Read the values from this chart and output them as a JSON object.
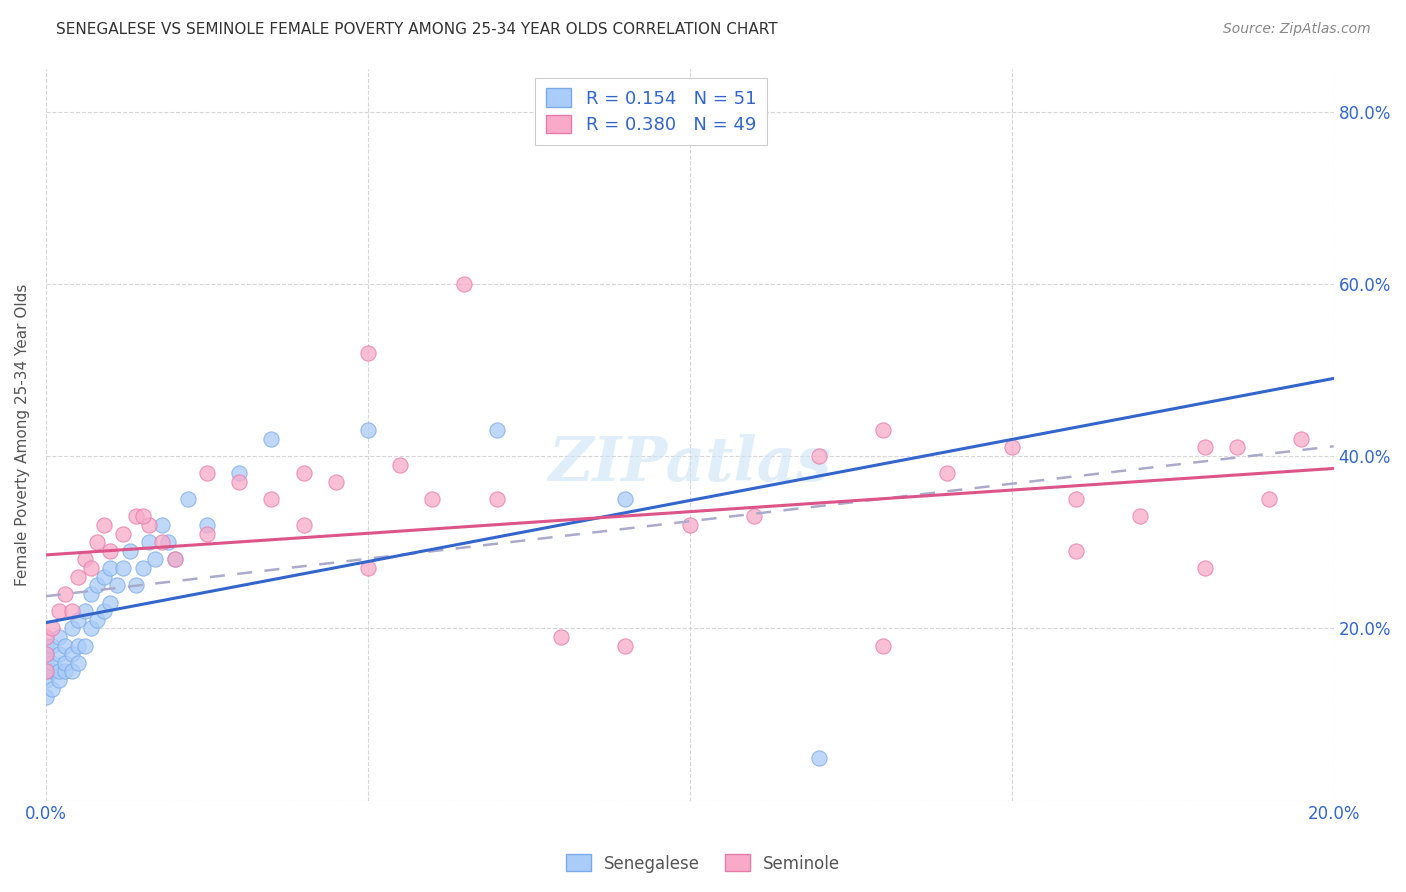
{
  "title": "SENEGALESE VS SEMINOLE FEMALE POVERTY AMONG 25-34 YEAR OLDS CORRELATION CHART",
  "source": "Source: ZipAtlas.com",
  "ylabel": "Female Poverty Among 25-34 Year Olds",
  "xlim": [
    0.0,
    0.2
  ],
  "ylim": [
    0.0,
    0.85
  ],
  "x_tick_positions": [
    0.0,
    0.05,
    0.1,
    0.15,
    0.2
  ],
  "x_tick_labels": [
    "0.0%",
    "",
    "",
    "",
    "20.0%"
  ],
  "y_tick_positions": [
    0.0,
    0.2,
    0.4,
    0.6,
    0.8
  ],
  "y_tick_labels_right": [
    "",
    "20.0%",
    "40.0%",
    "60.0%",
    "80.0%"
  ],
  "R_senegalese": 0.154,
  "N_senegalese": 51,
  "R_seminole": 0.38,
  "N_seminole": 49,
  "color_senegalese_face": "#aaccf8",
  "color_senegalese_edge": "#7aaae8",
  "color_seminole_face": "#f8aac8",
  "color_seminole_edge": "#e87aaa",
  "line_color_senegalese": "#3366cc",
  "line_color_seminole": "#dd5588",
  "dashed_line_color": "#aaaacc",
  "watermark": "ZIPatlas",
  "legend_text_color": "#3366cc",
  "right_axis_color": "#3366cc",
  "bottom_label_color": "#555555",
  "senegalese_x": [
    0.0,
    0.0,
    0.0,
    0.0,
    0.0,
    0.0,
    0.001,
    0.001,
    0.001,
    0.001,
    0.002,
    0.002,
    0.002,
    0.002,
    0.003,
    0.003,
    0.003,
    0.004,
    0.004,
    0.004,
    0.005,
    0.005,
    0.005,
    0.006,
    0.006,
    0.007,
    0.007,
    0.008,
    0.008,
    0.009,
    0.009,
    0.01,
    0.01,
    0.011,
    0.012,
    0.013,
    0.014,
    0.015,
    0.016,
    0.017,
    0.018,
    0.019,
    0.02,
    0.022,
    0.025,
    0.03,
    0.035,
    0.05,
    0.07,
    0.09,
    0.12
  ],
  "senegalese_y": [
    0.12,
    0.14,
    0.15,
    0.16,
    0.17,
    0.18,
    0.13,
    0.15,
    0.16,
    0.18,
    0.14,
    0.15,
    0.17,
    0.19,
    0.15,
    0.16,
    0.18,
    0.15,
    0.17,
    0.2,
    0.16,
    0.18,
    0.21,
    0.18,
    0.22,
    0.2,
    0.24,
    0.21,
    0.25,
    0.22,
    0.26,
    0.23,
    0.27,
    0.25,
    0.27,
    0.29,
    0.25,
    0.27,
    0.3,
    0.28,
    0.32,
    0.3,
    0.28,
    0.35,
    0.32,
    0.38,
    0.42,
    0.43,
    0.43,
    0.35,
    0.05
  ],
  "seminole_x": [
    0.0,
    0.0,
    0.0,
    0.001,
    0.002,
    0.003,
    0.004,
    0.005,
    0.006,
    0.007,
    0.008,
    0.009,
    0.01,
    0.012,
    0.014,
    0.016,
    0.018,
    0.02,
    0.025,
    0.03,
    0.035,
    0.04,
    0.045,
    0.05,
    0.055,
    0.06,
    0.065,
    0.07,
    0.08,
    0.09,
    0.1,
    0.11,
    0.12,
    0.13,
    0.14,
    0.15,
    0.16,
    0.17,
    0.18,
    0.185,
    0.19,
    0.195,
    0.015,
    0.025,
    0.04,
    0.05,
    0.13,
    0.16,
    0.18
  ],
  "seminole_y": [
    0.15,
    0.17,
    0.19,
    0.2,
    0.22,
    0.24,
    0.22,
    0.26,
    0.28,
    0.27,
    0.3,
    0.32,
    0.29,
    0.31,
    0.33,
    0.32,
    0.3,
    0.28,
    0.38,
    0.37,
    0.35,
    0.38,
    0.37,
    0.52,
    0.39,
    0.35,
    0.6,
    0.35,
    0.19,
    0.18,
    0.32,
    0.33,
    0.4,
    0.43,
    0.38,
    0.41,
    0.35,
    0.33,
    0.41,
    0.41,
    0.35,
    0.42,
    0.33,
    0.31,
    0.32,
    0.27,
    0.18,
    0.29,
    0.27
  ]
}
